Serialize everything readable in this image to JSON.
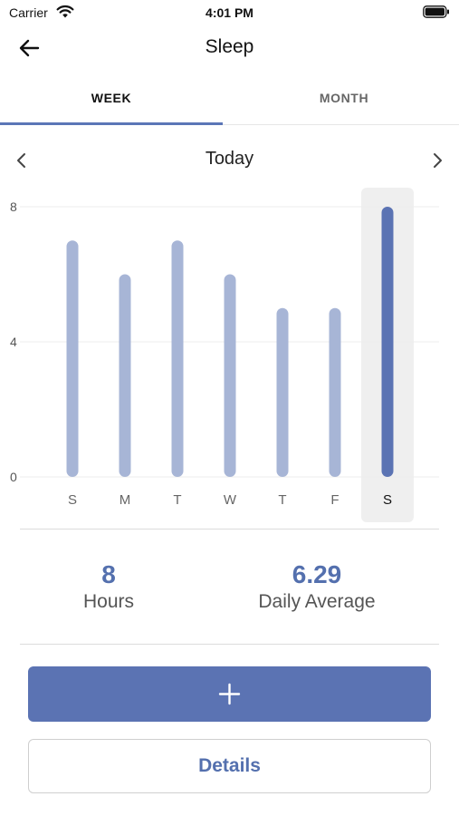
{
  "status_bar": {
    "carrier": "Carrier",
    "time": "4:01 PM"
  },
  "nav": {
    "title": "Sleep",
    "back_icon": "arrow-left-icon"
  },
  "tabs": [
    {
      "label": "WEEK",
      "selected": true
    },
    {
      "label": "MONTH",
      "selected": false
    }
  ],
  "date_nav": {
    "label": "Today",
    "prev_icon": "chevron-left-icon",
    "next_icon": "chevron-right-icon"
  },
  "chart_data": {
    "type": "bar",
    "categories": [
      "S",
      "M",
      "T",
      "W",
      "T",
      "F",
      "S"
    ],
    "values": [
      7,
      6,
      7,
      6,
      5,
      5,
      8
    ],
    "highlighted_index": 6,
    "y_ticks": [
      0,
      4,
      8
    ],
    "ylim": [
      0,
      8
    ],
    "bar_color": "#a7b5d6",
    "highlight_color": "#5b73b3"
  },
  "stats": {
    "hours": {
      "value": "8",
      "label": "Hours"
    },
    "average": {
      "value": "6.29",
      "label": "Daily Average"
    }
  },
  "actions": {
    "add_icon": "plus-icon",
    "details_label": "Details"
  },
  "colors": {
    "accent": "#5b73b3"
  }
}
